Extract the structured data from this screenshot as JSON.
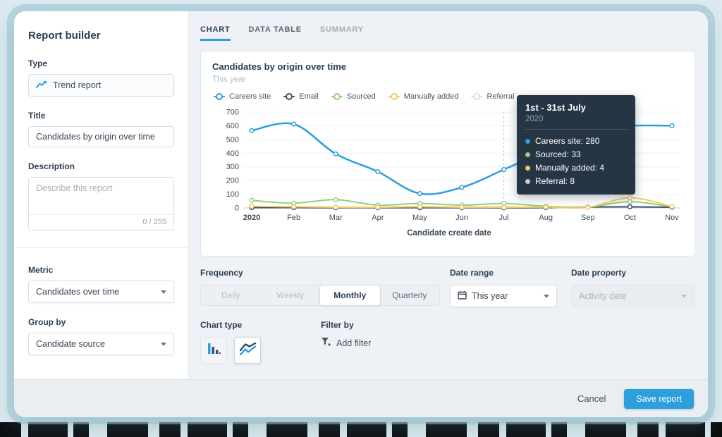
{
  "colors": {
    "accent": "#2d9fdd",
    "tooltip_bg": "#253543",
    "tab_underline": "#2d9fdd"
  },
  "sidebar": {
    "title": "Report builder",
    "type_label": "Type",
    "type_value": "Trend report",
    "title_label": "Title",
    "title_value": "Candidates by origin over time",
    "description_label": "Description",
    "description_placeholder": "Describe this report",
    "description_counter": "0 / 255",
    "metric_label": "Metric",
    "metric_value": "Candidates over time",
    "group_by_label": "Group by",
    "group_by_value": "Candidate source"
  },
  "tabs": [
    {
      "label": "CHART",
      "state": "active"
    },
    {
      "label": "DATA TABLE",
      "state": "default"
    },
    {
      "label": "SUMMARY",
      "state": "muted"
    }
  ],
  "chart_data": {
    "type": "line",
    "title": "Candidates by origin over time",
    "subtitle": "This year",
    "xlabel": "Candidate create date",
    "ylim": [
      0,
      700
    ],
    "ytick_step": 100,
    "grid": true,
    "legend_position": "top",
    "categories": [
      "2020",
      "Feb",
      "Mar",
      "Apr",
      "May",
      "Jun",
      "Jul",
      "Aug",
      "Sep",
      "Oct",
      "Nov"
    ],
    "series": [
      {
        "name": "Careers site",
        "color": "#2d9fdd",
        "values": [
          565,
          612,
          395,
          265,
          105,
          150,
          280,
          420,
          570,
          600,
          600
        ]
      },
      {
        "name": "Email",
        "color": "#3d5266",
        "values": [
          2,
          2,
          1,
          1,
          1,
          1,
          0,
          2,
          6,
          8,
          5
        ]
      },
      {
        "name": "Sourced",
        "color": "#94ce7c",
        "values": [
          55,
          35,
          60,
          20,
          33,
          20,
          33,
          12,
          6,
          46,
          8
        ]
      },
      {
        "name": "Manually added",
        "color": "#f0ca5e",
        "values": [
          12,
          8,
          5,
          5,
          8,
          5,
          4,
          6,
          4,
          74,
          10
        ]
      },
      {
        "name": "Referral",
        "color": "#d9dfe5",
        "values": [
          5,
          3,
          3,
          3,
          5,
          6,
          8,
          5,
          3,
          8,
          5
        ]
      }
    ],
    "hover_index": 6
  },
  "tooltip": {
    "title": "1st - 31st July",
    "subtitle": "2020",
    "rows": [
      {
        "label": "Careers site",
        "value": "280",
        "color": "#2d9fdd"
      },
      {
        "label": "Sourced",
        "value": "33",
        "color": "#94ce7c"
      },
      {
        "label": "Manually added",
        "value": "4",
        "color": "#f0ca5e"
      },
      {
        "label": "Referral",
        "value": "8",
        "color": "#c3cdd6"
      }
    ]
  },
  "controls": {
    "frequency_label": "Frequency",
    "frequency_options": [
      {
        "label": "Daily",
        "state": "disabled"
      },
      {
        "label": "Weekly",
        "state": "disabled"
      },
      {
        "label": "Monthly",
        "state": "selected"
      },
      {
        "label": "Quarterly",
        "state": "default"
      }
    ],
    "date_range_label": "Date range",
    "date_range_value": "This year",
    "date_property_label": "Date property",
    "date_property_value": "Activity date",
    "chart_type_label": "Chart type",
    "filter_by_label": "Filter by",
    "add_filter_label": "Add filter"
  },
  "footer": {
    "cancel_label": "Cancel",
    "save_label": "Save report"
  }
}
